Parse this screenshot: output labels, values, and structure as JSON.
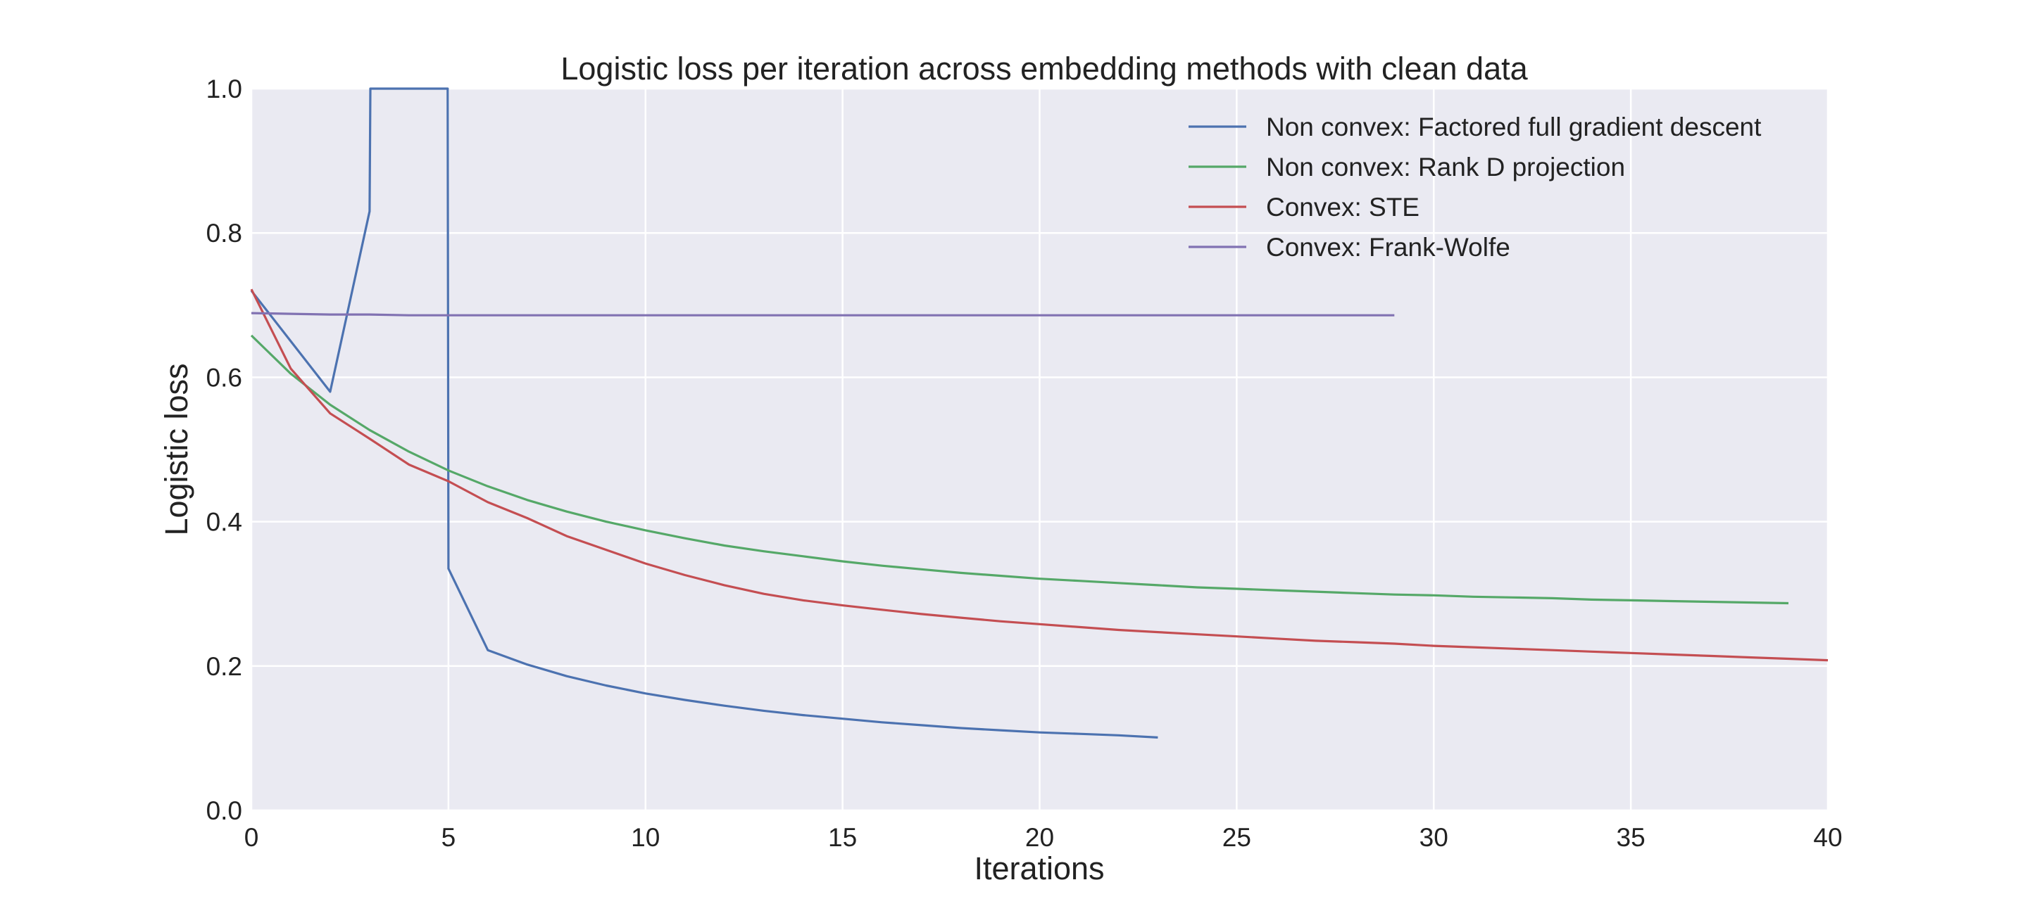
{
  "chart_data": {
    "type": "line",
    "title": "Logistic loss per iteration across embedding methods with clean data",
    "xlabel": "Iterations",
    "ylabel": "Logistic loss",
    "xlim": [
      0,
      40
    ],
    "ylim": [
      0,
      1.0
    ],
    "xticks": [
      0,
      5,
      10,
      15,
      20,
      25,
      30,
      35,
      40
    ],
    "xtick_labels": [
      "0",
      "5",
      "10",
      "15",
      "20",
      "25",
      "30",
      "35",
      "40"
    ],
    "yticks": [
      0.0,
      0.2,
      0.4,
      0.6,
      0.8,
      1.0
    ],
    "ytick_labels": [
      "0.0",
      "0.2",
      "0.4",
      "0.6",
      "0.8",
      "1.0"
    ],
    "grid": true,
    "legend_position": "top-right",
    "background_color": "#eaeaf2",
    "grid_color": "#ffffff",
    "series": [
      {
        "name": "Non convex: Factored full gradient descent",
        "color": "#4c72b0",
        "x": [
          0,
          1,
          2,
          3,
          3.02,
          4.98,
          5,
          6,
          7,
          8,
          9,
          10,
          11,
          12,
          13,
          14,
          15,
          16,
          17,
          18,
          19,
          20,
          21,
          22,
          23
        ],
        "y": [
          0.72,
          0.65,
          0.58,
          0.83,
          1.0,
          1.0,
          0.335,
          0.222,
          0.202,
          0.186,
          0.173,
          0.162,
          0.153,
          0.145,
          0.138,
          0.132,
          0.127,
          0.122,
          0.118,
          0.114,
          0.111,
          0.108,
          0.106,
          0.104,
          0.101
        ]
      },
      {
        "name": "Non convex: Rank D projection",
        "color": "#55a868",
        "x": [
          0,
          1,
          2,
          3,
          4,
          5,
          6,
          7,
          8,
          9,
          10,
          11,
          12,
          13,
          14,
          15,
          16,
          17,
          18,
          19,
          20,
          21,
          22,
          23,
          24,
          25,
          26,
          27,
          28,
          29,
          30,
          31,
          32,
          33,
          34,
          35,
          36,
          37,
          38,
          39
        ],
        "y": [
          0.658,
          0.605,
          0.562,
          0.527,
          0.497,
          0.471,
          0.449,
          0.43,
          0.414,
          0.4,
          0.388,
          0.377,
          0.367,
          0.359,
          0.352,
          0.345,
          0.339,
          0.334,
          0.329,
          0.325,
          0.321,
          0.318,
          0.315,
          0.312,
          0.309,
          0.307,
          0.305,
          0.303,
          0.301,
          0.299,
          0.298,
          0.296,
          0.295,
          0.294,
          0.292,
          0.291,
          0.29,
          0.289,
          0.288,
          0.287
        ]
      },
      {
        "name": "Convex: STE",
        "color": "#c44e52",
        "x": [
          0,
          1,
          2,
          3,
          4,
          5,
          6,
          7,
          8,
          9,
          10,
          11,
          12,
          13,
          14,
          15,
          16,
          17,
          18,
          19,
          20,
          21,
          22,
          23,
          24,
          25,
          26,
          27,
          28,
          29,
          30,
          31,
          32,
          33,
          34,
          35,
          36,
          37,
          38,
          39,
          40
        ],
        "y": [
          0.722,
          0.612,
          0.55,
          0.515,
          0.479,
          0.456,
          0.427,
          0.405,
          0.38,
          0.361,
          0.342,
          0.326,
          0.312,
          0.3,
          0.291,
          0.284,
          0.278,
          0.272,
          0.267,
          0.262,
          0.258,
          0.254,
          0.25,
          0.247,
          0.244,
          0.241,
          0.238,
          0.235,
          0.233,
          0.231,
          0.228,
          0.226,
          0.224,
          0.222,
          0.22,
          0.218,
          0.216,
          0.214,
          0.212,
          0.21,
          0.208
        ]
      },
      {
        "name": "Convex: Frank-Wolfe",
        "color": "#8172b2",
        "x": [
          0,
          1,
          2,
          3,
          4,
          5,
          6,
          7,
          8,
          9,
          10,
          11,
          12,
          13,
          14,
          15,
          16,
          17,
          18,
          19,
          20,
          21,
          22,
          23,
          24,
          25,
          26,
          27,
          28,
          29
        ],
        "y": [
          0.689,
          0.688,
          0.687,
          0.687,
          0.686,
          0.686,
          0.686,
          0.686,
          0.686,
          0.686,
          0.686,
          0.686,
          0.686,
          0.686,
          0.686,
          0.686,
          0.686,
          0.686,
          0.686,
          0.686,
          0.686,
          0.686,
          0.686,
          0.686,
          0.686,
          0.686,
          0.686,
          0.686,
          0.686,
          0.686
        ]
      }
    ]
  }
}
